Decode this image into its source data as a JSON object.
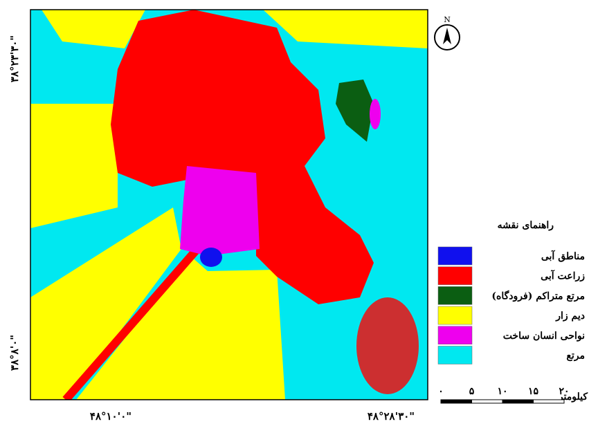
{
  "map": {
    "north_label": "N",
    "coords": {
      "left_top": "۳۸°۲۳'۳۰\"",
      "left_bottom": "۳۸°۸'۰\"",
      "bottom_left": "۴۸°۱۰'۰\"",
      "bottom_right": "۴۸°۲۸'۳۰\""
    },
    "legend": {
      "title": "راهنمای نقشه",
      "items": [
        {
          "label": "مناطق آبی",
          "color": "#1010ee"
        },
        {
          "label": "زراعت آبی",
          "color": "#ff0000"
        },
        {
          "label": "مرتع متراکم (فرودگاه)",
          "color": "#0b5e12"
        },
        {
          "label": "دیم زار",
          "color": "#ffff00"
        },
        {
          "label": "نواحی انسان ساخت",
          "color": "#ee00ee"
        },
        {
          "label": "مرتع",
          "color": "#00e8f0"
        }
      ]
    },
    "scale": {
      "unit": "کیلومتر",
      "ticks": [
        "۰",
        "۵",
        "۱۰",
        "۱۵",
        "۲۰"
      ]
    }
  }
}
